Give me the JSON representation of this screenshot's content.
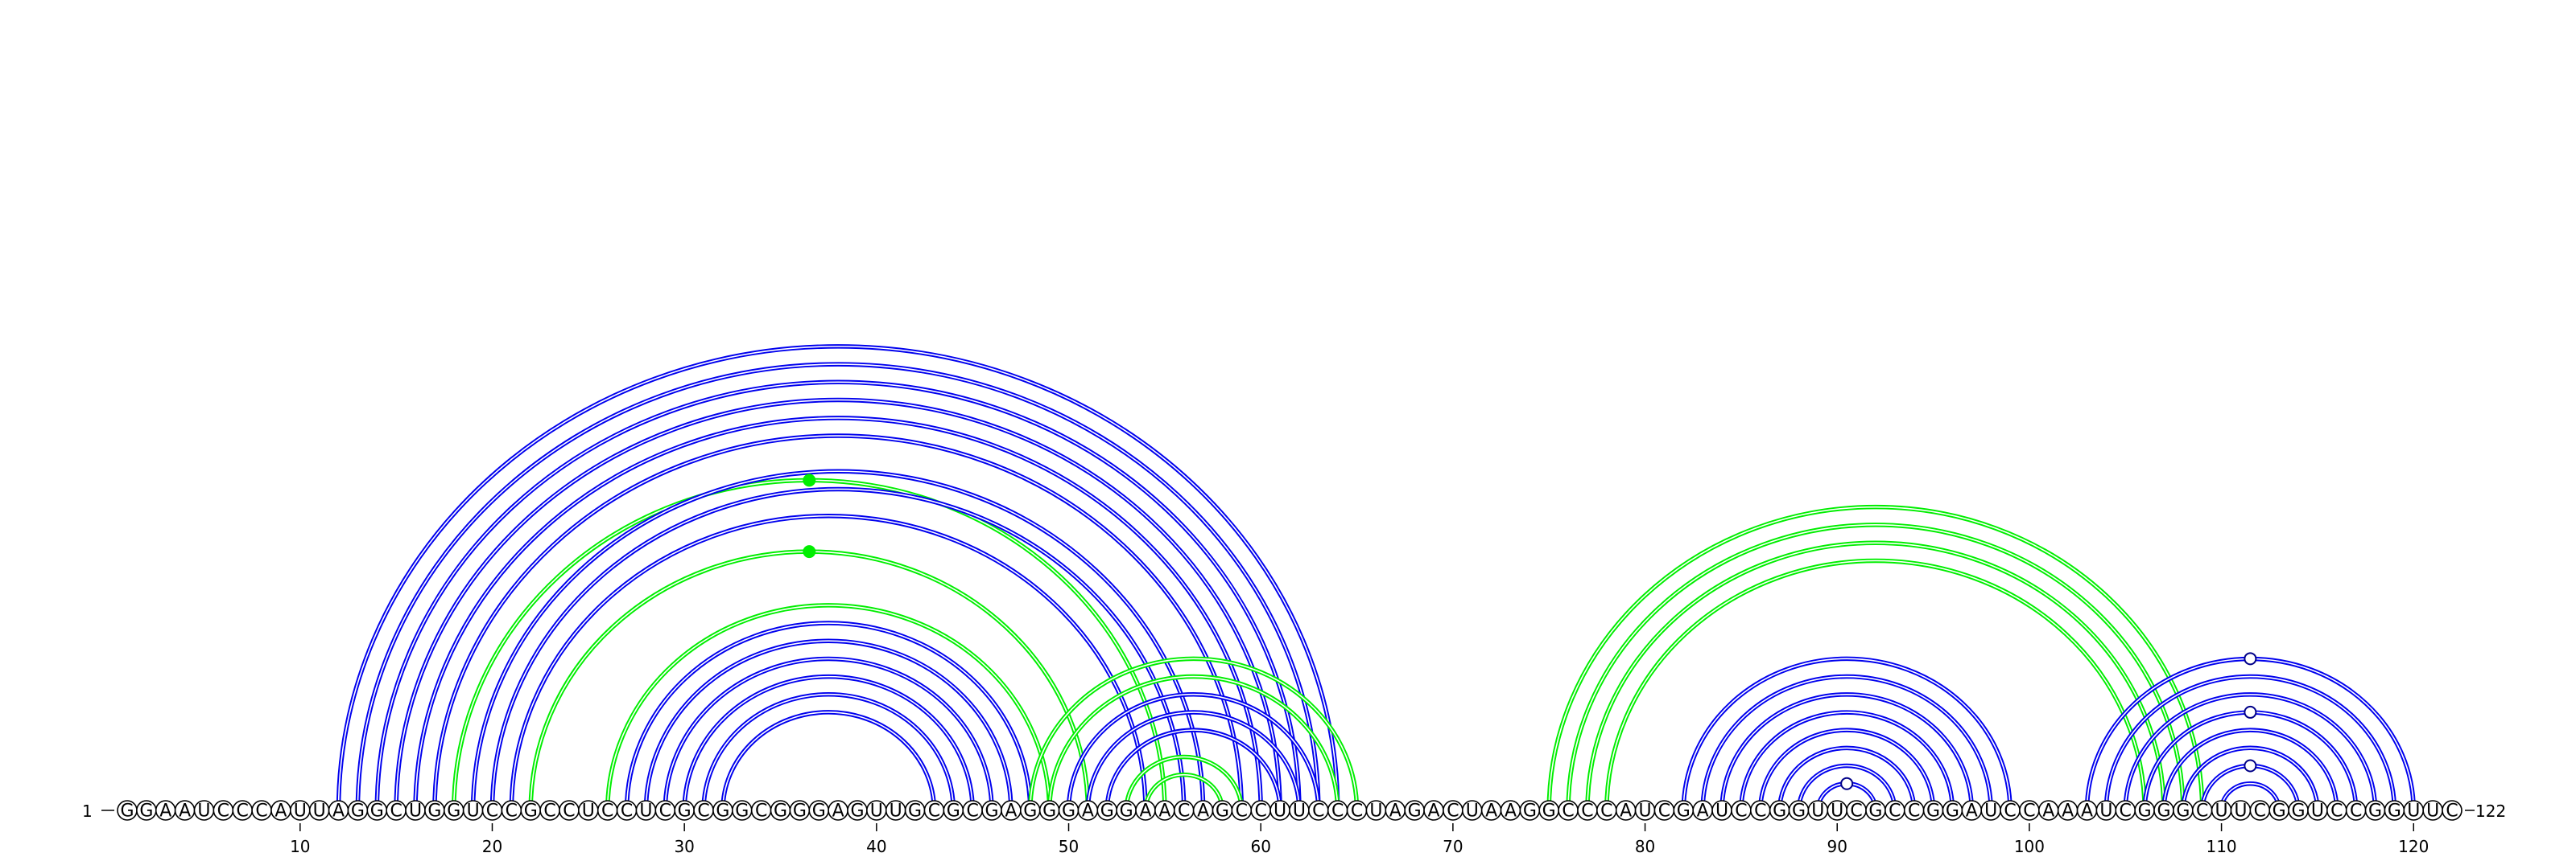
{
  "sequence": "GGAAUCCCAUUAGGCUGGUCCGCCUCCUCGCGGCGGGAGUUGCGCGAGGGAGGAACAGCCUUCCCUAGACUAAGGCCCAUCGAUCCGGUUCGCCGGAUCCAAAUCGGGCUUCGGUCCGGUUC",
  "start_label": "1",
  "end_label": "122",
  "ticks": [
    10,
    20,
    30,
    40,
    50,
    60,
    70,
    80,
    90,
    100,
    110,
    120
  ],
  "colors": {
    "blue": "#0000ee",
    "green": "#00ee00"
  },
  "helices": [
    {
      "color": "blue",
      "i": 12,
      "j": 64,
      "len": 1
    },
    {
      "color": "blue",
      "i": 13,
      "j": 63,
      "len": 1
    },
    {
      "color": "blue",
      "i": 14,
      "j": 62,
      "len": 1
    },
    {
      "color": "blue",
      "i": 15,
      "j": 61,
      "len": 1
    },
    {
      "color": "blue",
      "i": 16,
      "j": 60,
      "len": 1
    },
    {
      "color": "blue",
      "i": 17,
      "j": 59,
      "len": 1
    },
    {
      "color": "green",
      "i": 18,
      "j": 55,
      "len": 1
    },
    {
      "color": "blue",
      "i": 19,
      "j": 57,
      "len": 1
    },
    {
      "color": "blue",
      "i": 20,
      "j": 56,
      "len": 1
    },
    {
      "color": "blue",
      "i": 21,
      "j": 54,
      "len": 1
    },
    {
      "color": "green",
      "i": 22,
      "j": 51,
      "len": 1
    },
    {
      "color": "green",
      "i": 26,
      "j": 49,
      "len": 1
    },
    {
      "color": "blue",
      "i": 27,
      "j": 48,
      "len": 1
    },
    {
      "color": "blue",
      "i": 28,
      "j": 47,
      "len": 1
    },
    {
      "color": "blue",
      "i": 29,
      "j": 46,
      "len": 1
    },
    {
      "color": "blue",
      "i": 30,
      "j": 45,
      "len": 1
    },
    {
      "color": "blue",
      "i": 31,
      "j": 44,
      "len": 1
    },
    {
      "color": "blue",
      "i": 32,
      "j": 43,
      "len": 1
    },
    {
      "color": "green",
      "i": 48,
      "j": 65,
      "len": 1
    },
    {
      "color": "green",
      "i": 49,
      "j": 64,
      "len": 1
    },
    {
      "color": "blue",
      "i": 50,
      "j": 63,
      "len": 1
    },
    {
      "color": "blue",
      "i": 51,
      "j": 62,
      "len": 1
    },
    {
      "color": "blue",
      "i": 52,
      "j": 61,
      "len": 1
    },
    {
      "color": "green",
      "i": 53,
      "j": 59,
      "len": 1
    },
    {
      "color": "green",
      "i": 54,
      "j": 58,
      "len": 1
    },
    {
      "color": "green",
      "i": 75,
      "j": 109,
      "len": 1
    },
    {
      "color": "green",
      "i": 76,
      "j": 108,
      "len": 1
    },
    {
      "color": "green",
      "i": 77,
      "j": 107,
      "len": 1
    },
    {
      "color": "green",
      "i": 78,
      "j": 106,
      "len": 1
    },
    {
      "color": "blue",
      "i": 82,
      "j": 99,
      "len": 1
    },
    {
      "color": "blue",
      "i": 83,
      "j": 98,
      "len": 1
    },
    {
      "color": "blue",
      "i": 84,
      "j": 97,
      "len": 1
    },
    {
      "color": "blue",
      "i": 85,
      "j": 96,
      "len": 1
    },
    {
      "color": "blue",
      "i": 86,
      "j": 95,
      "len": 1
    },
    {
      "color": "blue",
      "i": 87,
      "j": 94,
      "len": 1
    },
    {
      "color": "blue",
      "i": 88,
      "j": 93,
      "len": 1
    },
    {
      "color": "blue",
      "i": 89,
      "j": 92,
      "len": 1
    },
    {
      "color": "blue",
      "i": 103,
      "j": 120,
      "len": 1
    },
    {
      "color": "blue",
      "i": 104,
      "j": 119,
      "len": 1
    },
    {
      "color": "blue",
      "i": 105,
      "j": 118,
      "len": 1
    },
    {
      "color": "blue",
      "i": 106,
      "j": 117,
      "len": 1
    },
    {
      "color": "blue",
      "i": 107,
      "j": 116,
      "len": 1
    },
    {
      "color": "blue",
      "i": 108,
      "j": 115,
      "len": 1
    },
    {
      "color": "blue",
      "i": 109,
      "j": 114,
      "len": 1
    },
    {
      "color": "blue",
      "i": 110,
      "j": 113,
      "len": 1
    }
  ],
  "apex_markers": [
    {
      "between": [
        18,
        55
      ],
      "style": "filled",
      "color": "green"
    },
    {
      "between": [
        22,
        51
      ],
      "style": "filled",
      "color": "green"
    },
    {
      "between": [
        89,
        92
      ],
      "style": "open",
      "color": "blue"
    },
    {
      "between": [
        103,
        120
      ],
      "style": "open",
      "color": "blue"
    },
    {
      "between": [
        106,
        117
      ],
      "style": "open",
      "color": "blue"
    },
    {
      "between": [
        109,
        114
      ],
      "style": "open",
      "color": "blue"
    }
  ]
}
